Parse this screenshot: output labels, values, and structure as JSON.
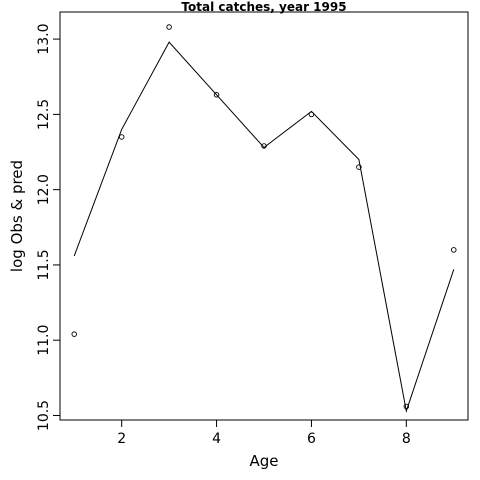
{
  "chart_data": {
    "type": "line",
    "title": "Total catches, year 1995",
    "xlabel": "Age",
    "ylabel": "log Obs & pred",
    "xlim": [
      0.7,
      9.3
    ],
    "ylim": [
      10.47,
      13.18
    ],
    "x_ticks": [
      2,
      4,
      6,
      8
    ],
    "x_tick_labels": [
      "2",
      "4",
      "6",
      "8"
    ],
    "y_ticks": [
      10.5,
      11.0,
      11.5,
      12.0,
      12.5,
      13.0
    ],
    "y_tick_labels": [
      "10.5",
      "11.0",
      "11.5",
      "12.0",
      "12.5",
      "13.0"
    ],
    "grid": false,
    "series": [
      {
        "style": "points",
        "x": [
          1,
          2,
          3,
          4,
          5,
          6,
          7,
          8,
          9
        ],
        "values": [
          11.04,
          12.35,
          13.08,
          12.63,
          12.29,
          12.5,
          12.15,
          10.56,
          11.6
        ]
      },
      {
        "style": "line",
        "x": [
          1,
          2,
          3,
          4,
          5,
          6,
          7,
          8,
          9
        ],
        "values": [
          11.56,
          12.4,
          12.98,
          12.63,
          12.28,
          12.52,
          12.2,
          10.53,
          11.47
        ]
      }
    ]
  }
}
